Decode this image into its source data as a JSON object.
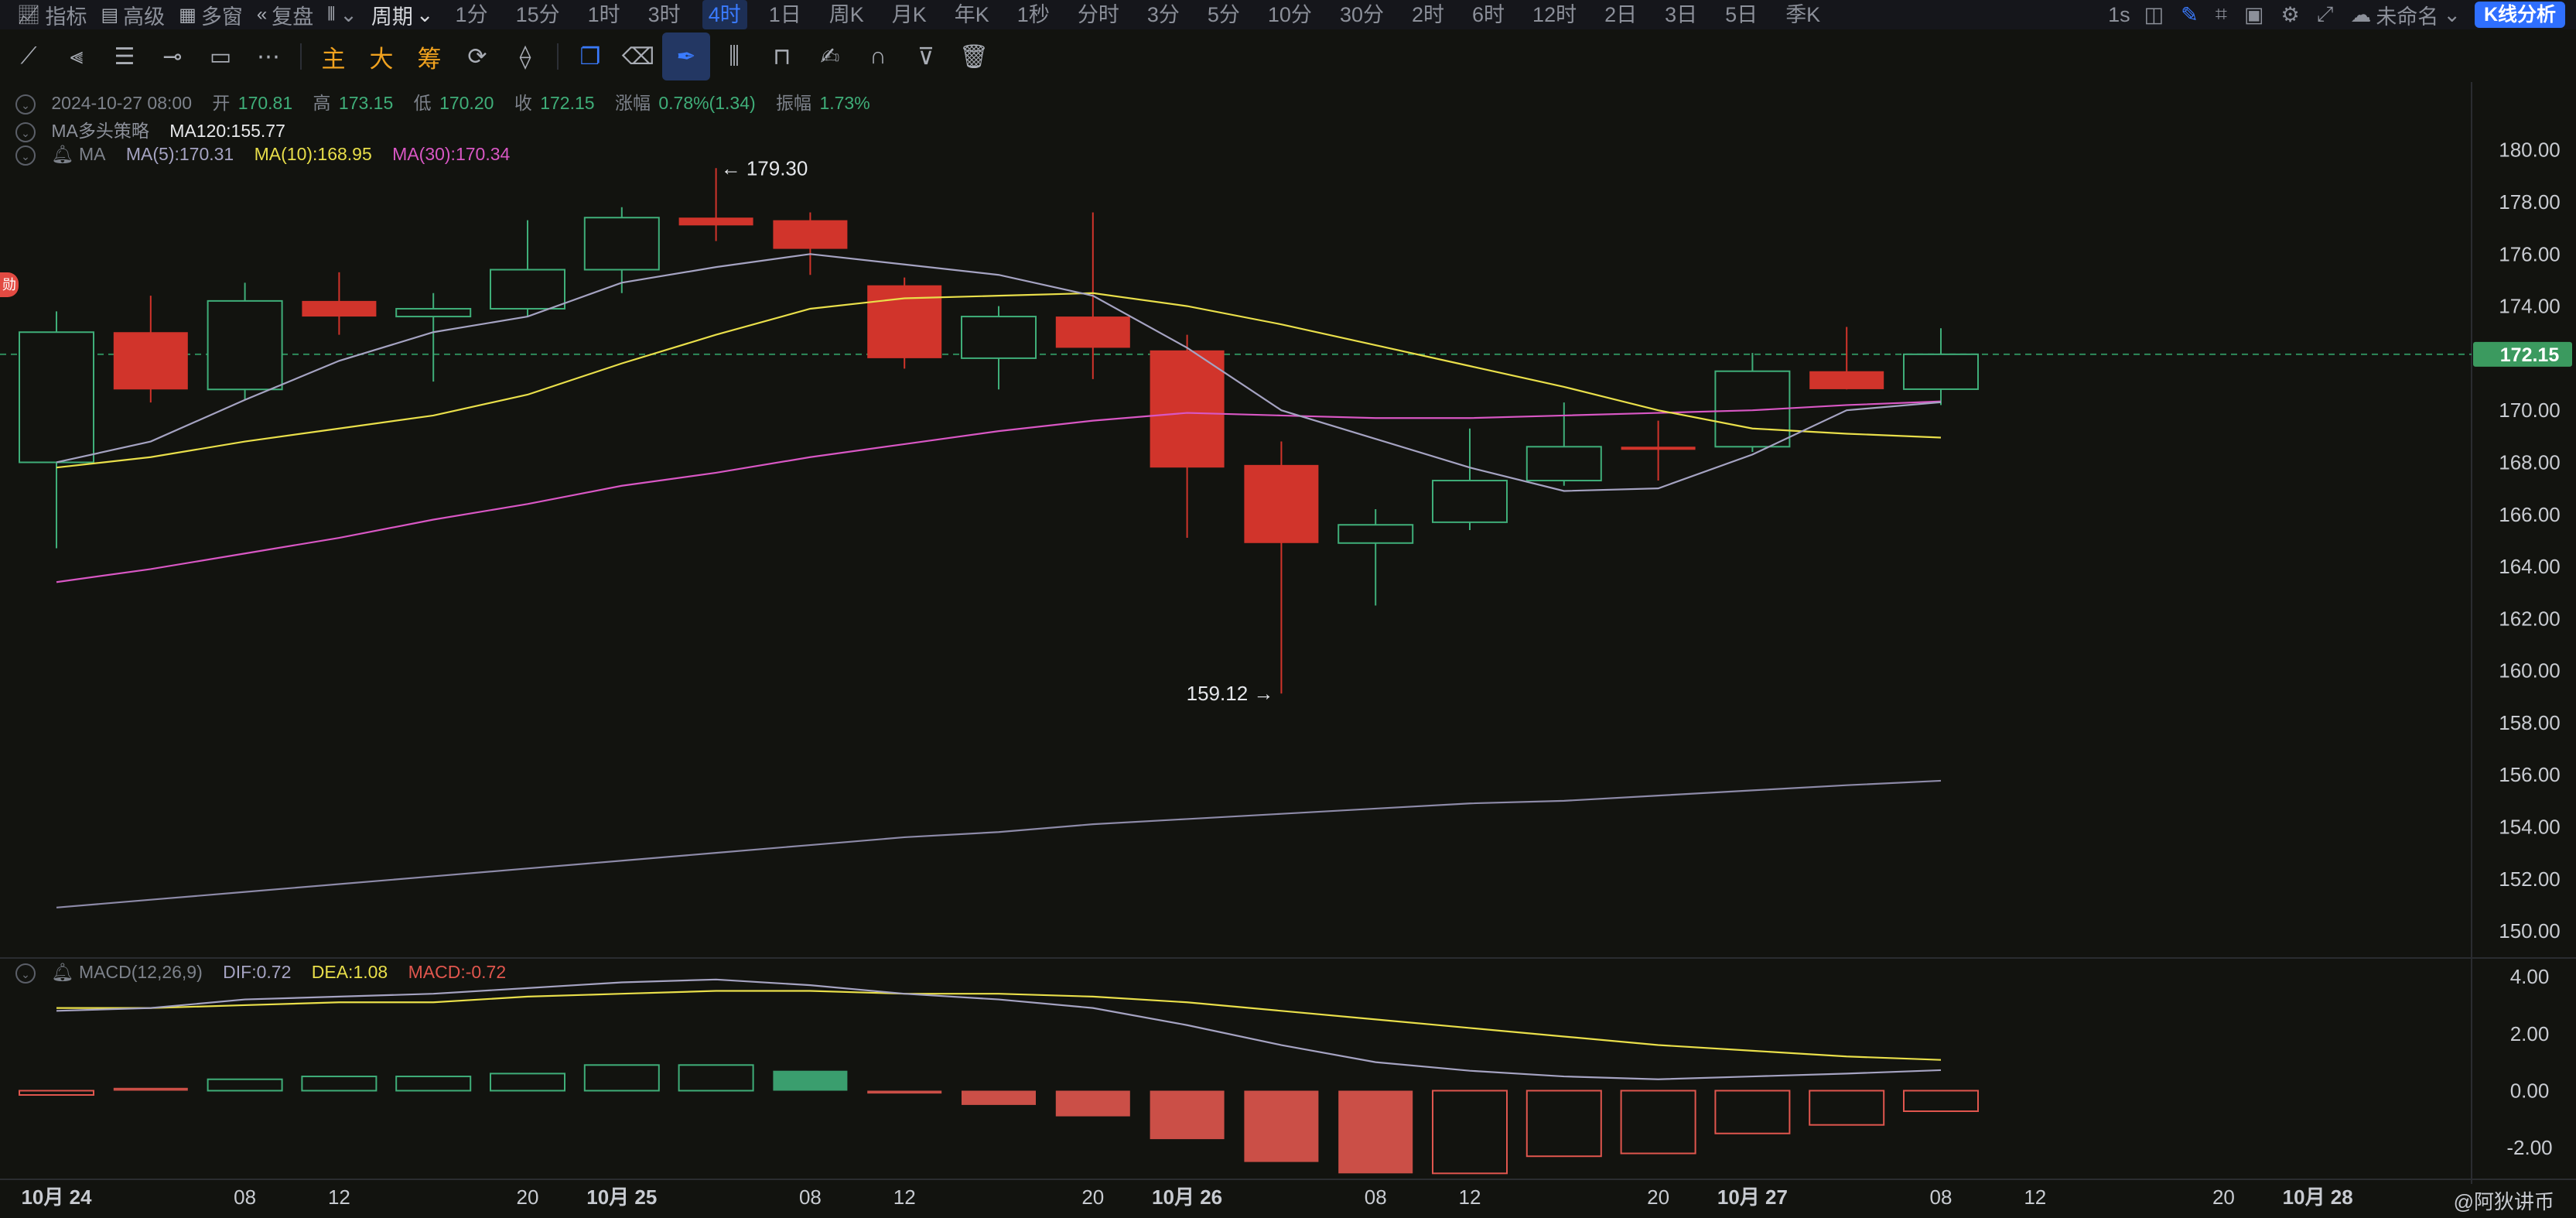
{
  "topbar": {
    "indicators": "指标",
    "advanced": "高级",
    "multi_window": "多窗",
    "replay": "复盘",
    "period_menu": "周期",
    "periods": [
      "1分",
      "15分",
      "1时",
      "3时",
      "4时",
      "1日",
      "周K",
      "月K",
      "年K",
      "1秒",
      "分时",
      "3分",
      "5分",
      "10分",
      "30分",
      "2时",
      "6时",
      "12时",
      "2日",
      "3日",
      "5日",
      "季K"
    ],
    "active_period": "4时",
    "interval": "1s",
    "layout_name": "未命名",
    "kline_analysis": "K线分析"
  },
  "toolbar": {
    "main": "主",
    "big": "大",
    "chips": "筹"
  },
  "legend": {
    "time": "2024-10-27 08:00",
    "open_label": "开",
    "open": "170.81",
    "high_label": "高",
    "high": "173.15",
    "low_label": "低",
    "low": "170.20",
    "close_label": "收",
    "close": "172.15",
    "change_label": "涨幅",
    "change": "0.78%(1.34)",
    "amp_label": "振幅",
    "amp": "1.73%",
    "strategy": "MA多头策略",
    "ma120": "MA120:155.77",
    "ma_name": "MA",
    "ma5": "MA(5):170.31",
    "ma10": "MA(10):168.95",
    "ma30": "MA(30):170.34",
    "macd_name": "MACD(12,26,9)",
    "dif": "DIF:0.72",
    "dea": "DEA:1.08",
    "macd": "MACD:-0.72",
    "left_badge": "勋"
  },
  "colors": {
    "up": "#3fae79",
    "down": "#d1342b",
    "ma5": "#a5a3c2",
    "ma10": "#e9df4a",
    "ma30": "#d857c4",
    "ma120": "#8d8aa8",
    "dif": "#a5a3c2",
    "dea": "#e9df4a",
    "price_tag": "#3b9a5f"
  },
  "watermark": "@阿狄讲币",
  "chart_data": {
    "type": "candlestick",
    "current_price": 172.15,
    "y_ticks": [
      180.0,
      178.0,
      176.0,
      174.0,
      172.0,
      170.0,
      168.0,
      166.0,
      164.0,
      162.0,
      160.0,
      158.0,
      156.0,
      154.0,
      152.0,
      150.0
    ],
    "ylim": [
      149.2,
      181.3
    ],
    "x_ticks": [
      {
        "label": "10月 24",
        "x": 0,
        "bold": true
      },
      {
        "label": "08",
        "x": 2
      },
      {
        "label": "12",
        "x": 3
      },
      {
        "label": "20",
        "x": 5
      },
      {
        "label": "10月 25",
        "x": 6,
        "bold": true
      },
      {
        "label": "08",
        "x": 8
      },
      {
        "label": "12",
        "x": 9
      },
      {
        "label": "20",
        "x": 11
      },
      {
        "label": "10月 26",
        "x": 12,
        "bold": true
      },
      {
        "label": "08",
        "x": 14
      },
      {
        "label": "12",
        "x": 15
      },
      {
        "label": "20",
        "x": 17
      },
      {
        "label": "10月 27",
        "x": 18,
        "bold": true
      },
      {
        "label": "08",
        "x": 20
      },
      {
        "label": "12",
        "x": 21
      },
      {
        "label": "20",
        "x": 23
      },
      {
        "label": "10月 28",
        "x": 24,
        "bold": true
      }
    ],
    "candles": [
      {
        "o": 168.0,
        "h": 173.8,
        "l": 164.7,
        "c": 173.0
      },
      {
        "o": 173.0,
        "h": 174.4,
        "l": 170.3,
        "c": 170.8
      },
      {
        "o": 170.8,
        "h": 174.9,
        "l": 170.4,
        "c": 174.2
      },
      {
        "o": 174.2,
        "h": 175.3,
        "l": 172.9,
        "c": 173.6
      },
      {
        "o": 173.6,
        "h": 174.5,
        "l": 171.1,
        "c": 173.9
      },
      {
        "o": 173.9,
        "h": 177.3,
        "l": 173.6,
        "c": 175.4
      },
      {
        "o": 175.4,
        "h": 177.8,
        "l": 174.5,
        "c": 177.4
      },
      {
        "o": 177.4,
        "h": 179.3,
        "l": 176.5,
        "c": 177.1
      },
      {
        "o": 177.3,
        "h": 177.6,
        "l": 175.2,
        "c": 176.2
      },
      {
        "o": 174.8,
        "h": 175.1,
        "l": 171.6,
        "c": 172.0
      },
      {
        "o": 172.0,
        "h": 174.0,
        "l": 170.8,
        "c": 173.6
      },
      {
        "o": 173.6,
        "h": 177.6,
        "l": 171.2,
        "c": 172.4
      },
      {
        "o": 172.3,
        "h": 172.9,
        "l": 165.1,
        "c": 167.8
      },
      {
        "o": 167.9,
        "h": 168.8,
        "l": 159.12,
        "c": 164.9
      },
      {
        "o": 164.9,
        "h": 166.2,
        "l": 162.5,
        "c": 165.6
      },
      {
        "o": 165.7,
        "h": 169.3,
        "l": 165.4,
        "c": 167.3
      },
      {
        "o": 167.3,
        "h": 170.3,
        "l": 167.1,
        "c": 168.6
      },
      {
        "o": 168.6,
        "h": 169.6,
        "l": 167.3,
        "c": 168.5
      },
      {
        "o": 168.6,
        "h": 172.2,
        "l": 168.4,
        "c": 171.5
      },
      {
        "o": 171.5,
        "h": 173.2,
        "l": 170.8,
        "c": 170.81
      },
      {
        "o": 170.81,
        "h": 173.15,
        "l": 170.2,
        "c": 172.15
      }
    ],
    "ma5": [
      168.0,
      168.8,
      170.4,
      171.9,
      173.0,
      173.6,
      174.9,
      175.5,
      176.0,
      175.6,
      175.2,
      174.4,
      172.4,
      170.0,
      168.9,
      167.8,
      166.9,
      167.0,
      168.3,
      170.0,
      170.31
    ],
    "ma10": [
      167.8,
      168.2,
      168.8,
      169.3,
      169.8,
      170.6,
      171.8,
      172.9,
      173.9,
      174.3,
      174.4,
      174.5,
      174.0,
      173.3,
      172.5,
      171.7,
      170.9,
      170.0,
      169.3,
      169.1,
      168.95
    ],
    "ma30": [
      163.4,
      163.9,
      164.5,
      165.1,
      165.8,
      166.4,
      167.1,
      167.6,
      168.2,
      168.7,
      169.2,
      169.6,
      169.9,
      169.8,
      169.7,
      169.7,
      169.8,
      169.9,
      170.0,
      170.2,
      170.34
    ],
    "ma120": [
      150.9,
      151.2,
      151.5,
      151.8,
      152.1,
      152.4,
      152.7,
      153.0,
      153.3,
      153.6,
      153.8,
      154.1,
      154.3,
      154.5,
      154.7,
      154.9,
      155.0,
      155.2,
      155.4,
      155.6,
      155.77
    ],
    "annotations": [
      {
        "text": "179.30",
        "x": 7,
        "y": 179.3,
        "arrow": "left"
      },
      {
        "text": "159.12",
        "x": 13,
        "y": 159.12,
        "arrow": "right"
      }
    ],
    "macd": {
      "y_ticks": [
        4.0,
        2.0,
        0.0,
        -2.0
      ],
      "ylim": [
        -3.0,
        4.6
      ],
      "dif": [
        2.8,
        2.9,
        3.2,
        3.3,
        3.4,
        3.6,
        3.8,
        3.9,
        3.7,
        3.4,
        3.2,
        2.9,
        2.3,
        1.6,
        1.0,
        0.7,
        0.5,
        0.4,
        0.5,
        0.6,
        0.72
      ],
      "dea": [
        2.9,
        2.9,
        3.0,
        3.1,
        3.1,
        3.3,
        3.4,
        3.5,
        3.5,
        3.4,
        3.4,
        3.3,
        3.1,
        2.8,
        2.5,
        2.2,
        1.9,
        1.6,
        1.4,
        1.2,
        1.08
      ],
      "hist": [
        -0.15,
        0.1,
        0.4,
        0.5,
        0.5,
        0.6,
        0.9,
        0.9,
        0.7,
        -0.1,
        -0.5,
        -0.9,
        -1.7,
        -2.5,
        -2.9,
        -2.9,
        -2.3,
        -2.2,
        -1.5,
        -1.2,
        -0.72
      ],
      "hist_style": [
        "hollow-red",
        "red",
        "hollow-green",
        "hollow-green",
        "hollow-green",
        "hollow-green",
        "hollow-green",
        "hollow-green",
        "green",
        "red",
        "red",
        "red",
        "red",
        "red",
        "red",
        "hollow-red",
        "hollow-red",
        "hollow-red",
        "hollow-red",
        "hollow-red",
        "hollow-red"
      ]
    }
  }
}
